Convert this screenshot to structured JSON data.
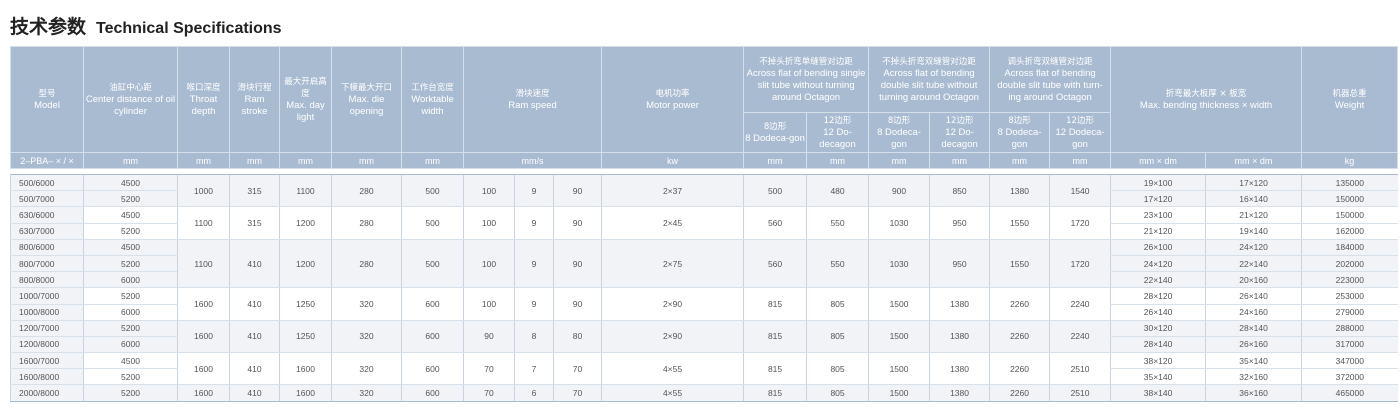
{
  "title": {
    "zh": "技术参数",
    "en": "Technical Specifications"
  },
  "header": {
    "model": {
      "zh": "型号",
      "en": "Model",
      "unit": "2–PBA– × / ×"
    },
    "center": {
      "zh": "油缸中心距",
      "en": "Center distance of oil cylinder",
      "unit": "mm"
    },
    "throat": {
      "zh": "喉口深度",
      "en": "Throat depth",
      "unit": "mm"
    },
    "stroke": {
      "zh": "滑块行程",
      "en": "Ram stroke",
      "unit": "mm"
    },
    "daylight": {
      "zh": "最大开启高度",
      "en": "Max. day light",
      "unit": "mm"
    },
    "die": {
      "zh": "下模最大开口",
      "en": "Max. die opening",
      "unit": "mm"
    },
    "worktable": {
      "zh": "工作台宽度",
      "en": "Worktable width",
      "unit": "mm"
    },
    "speed": {
      "zh": "滑块速度",
      "en": "Ram speed",
      "unit": "mm/s"
    },
    "motor": {
      "zh": "电机功率",
      "en": "Motor power",
      "unit": "kw"
    },
    "single": {
      "zh": "不掉头折弯单缝管对边距",
      "en": "Across flat of bending single slit tube without turning around Octagon",
      "sub8": {
        "zh": "8边形",
        "en": "8 Dodeca-gon"
      },
      "sub12": {
        "zh": "12边形",
        "en": "12 Do-decagon"
      },
      "unit": "mm"
    },
    "double": {
      "zh": "不掉头折弯双缝管对边距",
      "en": "Across flat of bending double slit tube without turning around Octagon",
      "sub8": {
        "zh": "8边形",
        "en": "8 Dodeca-gon"
      },
      "sub12": {
        "zh": "12边形",
        "en": "12 Do-decagon"
      },
      "unit": "mm"
    },
    "turning": {
      "zh": "调头折弯双缝管对边距",
      "en": "Across flat of bending double slit tube with turn-ing around Octagon",
      "sub8": {
        "zh": "8边形",
        "en": "8 Dodeca-gon"
      },
      "sub12": {
        "zh": "12边形",
        "en": "12 Dodeca-gon"
      },
      "unit": "mm"
    },
    "bending": {
      "zh": "折弯最大板厚 × 板宽",
      "en": "Max. bending thickness × width",
      "unit1": "mm × dm",
      "unit2": "mm × dm"
    },
    "weight": {
      "zh": "机器总重",
      "en": "Weight",
      "unit": "kg"
    }
  },
  "groups": [
    {
      "throat": "1000",
      "stroke": "315",
      "daylight": "1100",
      "die": "280",
      "worktable": "500",
      "speed": [
        "100",
        "9",
        "90"
      ],
      "motor": "2×37",
      "single": [
        "500",
        "480"
      ],
      "double": [
        "900",
        "850"
      ],
      "turning": [
        "1380",
        "1540"
      ],
      "rows": [
        [
          "500/6000",
          "4500",
          "19×100",
          "17×120",
          "135000"
        ],
        [
          "500/7000",
          "5200",
          "17×120",
          "16×140",
          "150000"
        ]
      ]
    },
    {
      "throat": "1100",
      "stroke": "315",
      "daylight": "1200",
      "die": "280",
      "worktable": "500",
      "speed": [
        "100",
        "9",
        "90"
      ],
      "motor": "2×45",
      "single": [
        "560",
        "550"
      ],
      "double": [
        "1030",
        "950"
      ],
      "turning": [
        "1550",
        "1720"
      ],
      "rows": [
        [
          "630/6000",
          "4500",
          "23×100",
          "21×120",
          "150000"
        ],
        [
          "630/7000",
          "5200",
          "21×120",
          "19×140",
          "162000"
        ]
      ]
    },
    {
      "throat": "1100",
      "stroke": "410",
      "daylight": "1200",
      "die": "280",
      "worktable": "500",
      "speed": [
        "100",
        "9",
        "90"
      ],
      "motor": "2×75",
      "single": [
        "560",
        "550"
      ],
      "double": [
        "1030",
        "950"
      ],
      "turning": [
        "1550",
        "1720"
      ],
      "rows": [
        [
          "800/6000",
          "4500",
          "26×100",
          "24×120",
          "184000"
        ],
        [
          "800/7000",
          "5200",
          "24×120",
          "22×140",
          "202000"
        ],
        [
          "800/8000",
          "6000",
          "22×140",
          "20×160",
          "223000"
        ]
      ]
    },
    {
      "throat": "1600",
      "stroke": "410",
      "daylight": "1250",
      "die": "320",
      "worktable": "600",
      "speed": [
        "100",
        "9",
        "90"
      ],
      "motor": "2×90",
      "single": [
        "815",
        "805"
      ],
      "double": [
        "1500",
        "1380"
      ],
      "turning": [
        "2260",
        "2240"
      ],
      "rows": [
        [
          "1000/7000",
          "5200",
          "28×120",
          "26×140",
          "253000"
        ],
        [
          "1000/8000",
          "6000",
          "26×140",
          "24×160",
          "279000"
        ]
      ]
    },
    {
      "throat": "1600",
      "stroke": "410",
      "daylight": "1250",
      "die": "320",
      "worktable": "600",
      "speed": [
        "90",
        "8",
        "80"
      ],
      "motor": "2×90",
      "single": [
        "815",
        "805"
      ],
      "double": [
        "1500",
        "1380"
      ],
      "turning": [
        "2260",
        "2240"
      ],
      "rows": [
        [
          "1200/7000",
          "5200",
          "30×120",
          "28×140",
          "288000"
        ],
        [
          "1200/8000",
          "6000",
          "28×140",
          "26×160",
          "317000"
        ]
      ]
    },
    {
      "throat": "1600",
      "stroke": "410",
      "daylight": "1600",
      "die": "320",
      "worktable": "600",
      "speed": [
        "70",
        "7",
        "70"
      ],
      "motor": "4×55",
      "single": [
        "815",
        "805"
      ],
      "double": [
        "1500",
        "1380"
      ],
      "turning": [
        "2260",
        "2510"
      ],
      "rows": [
        [
          "1600/7000",
          "4500",
          "38×120",
          "35×140",
          "347000"
        ],
        [
          "1600/8000",
          "5200",
          "35×140",
          "32×160",
          "372000"
        ]
      ]
    },
    {
      "throat": "1600",
      "stroke": "410",
      "daylight": "1600",
      "die": "320",
      "worktable": "600",
      "speed": [
        "70",
        "6",
        "70"
      ],
      "motor": "4×55",
      "single": [
        "815",
        "805"
      ],
      "double": [
        "1500",
        "1380"
      ],
      "turning": [
        "2260",
        "2510"
      ],
      "rows": [
        [
          "2000/8000",
          "5200",
          "38×140",
          "36×160",
          "465000"
        ]
      ]
    }
  ],
  "colors": {
    "header": "#a9bbd0",
    "row_shade": "#f1f3f6",
    "text": "#555555"
  }
}
